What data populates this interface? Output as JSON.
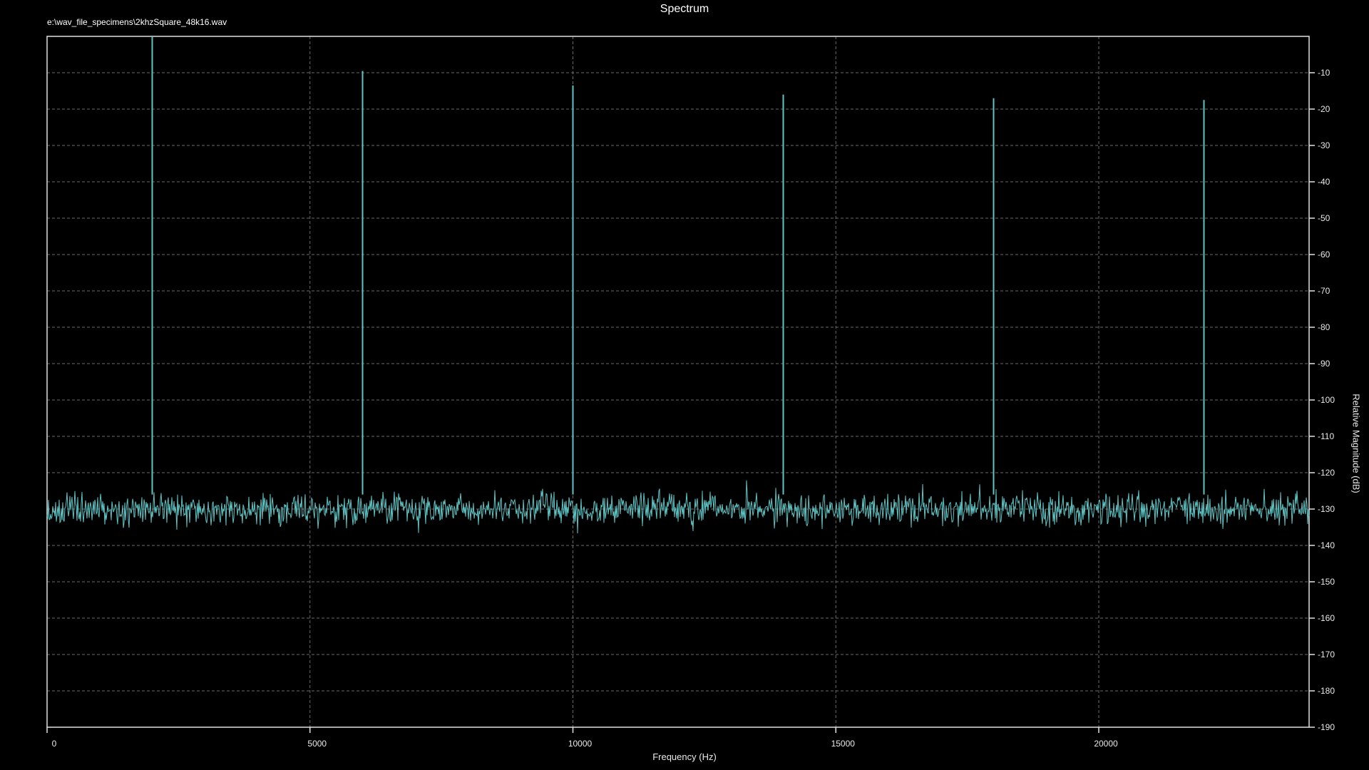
{
  "chart_data": {
    "type": "line",
    "title": "Spectrum",
    "subtitle": "e:\\wav_file_specimens\\2khzSquare_48k16.wav",
    "xlabel": "Frequency (Hz)",
    "ylabel": "Relative Magnitude (dB)",
    "xlim": [
      0,
      24000
    ],
    "ylim": [
      -190,
      0
    ],
    "x_ticks": [
      0,
      5000,
      10000,
      15000,
      20000
    ],
    "y_ticks": [
      -10,
      -20,
      -30,
      -40,
      -50,
      -60,
      -70,
      -80,
      -90,
      -100,
      -110,
      -120,
      -130,
      -140,
      -150,
      -160,
      -170,
      -180,
      -190
    ],
    "y_axis_side": "right",
    "grid": true,
    "grid_style": "dashed",
    "line_color": "#5fc4c4",
    "background_color": "#000000",
    "noise_floor": {
      "mean_db": -130,
      "spread_db": 3
    },
    "series": [
      {
        "peaks": [
          {
            "x": 2000,
            "y": 0
          },
          {
            "x": 6000,
            "y": -9.5
          },
          {
            "x": 10000,
            "y": -13.5
          },
          {
            "x": 14000,
            "y": -16
          },
          {
            "x": 18000,
            "y": -17
          },
          {
            "x": 22000,
            "y": -17.5
          }
        ]
      }
    ]
  }
}
